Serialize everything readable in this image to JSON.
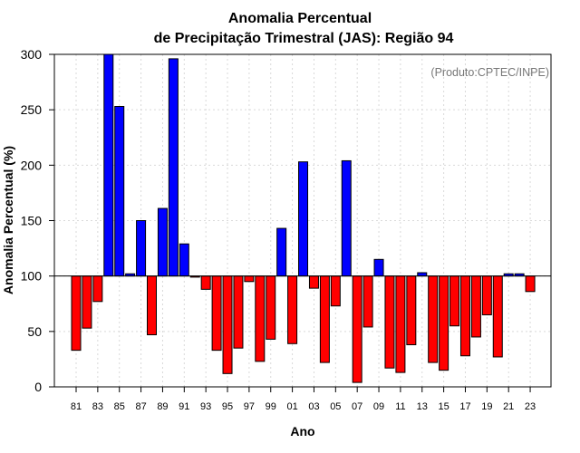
{
  "chart_data": {
    "type": "bar",
    "title": [
      "Anomalia Percentual",
      "de Precipitação Trimestral (JAS): Região 94"
    ],
    "xlabel": "Ano",
    "ylabel": "Anomalia Percentual (%)",
    "annotation": "(Produto:CPTEC/INPE)",
    "ylim": [
      0,
      300
    ],
    "yticks": [
      0,
      50,
      100,
      150,
      200,
      250,
      300
    ],
    "baseline": 100,
    "grid": true,
    "colors": {
      "above": "#0000ff",
      "below": "#ff0000"
    },
    "categories": [
      "81",
      "82",
      "83",
      "84",
      "85",
      "86",
      "87",
      "88",
      "89",
      "90",
      "91",
      "92",
      "93",
      "94",
      "95",
      "96",
      "97",
      "98",
      "99",
      "00",
      "01",
      "02",
      "03",
      "04",
      "05",
      "06",
      "07",
      "08",
      "09",
      "10",
      "11",
      "12",
      "13",
      "14",
      "15",
      "16",
      "17",
      "18",
      "19",
      "20",
      "21",
      "22",
      "23"
    ],
    "xtick_labels": [
      "81",
      "83",
      "85",
      "87",
      "89",
      "91",
      "93",
      "95",
      "97",
      "99",
      "01",
      "03",
      "05",
      "07",
      "09",
      "11",
      "13",
      "15",
      "17",
      "19",
      "21",
      "23"
    ],
    "values": [
      33,
      53,
      77,
      300,
      253,
      102,
      150,
      47,
      161,
      296,
      129,
      99,
      88,
      33,
      12,
      35,
      95,
      23,
      43,
      143,
      39,
      203,
      89,
      22,
      73,
      204,
      4,
      54,
      115,
      17,
      13,
      38,
      103,
      22,
      15,
      55,
      28,
      45,
      65,
      27,
      102,
      102,
      86
    ]
  }
}
